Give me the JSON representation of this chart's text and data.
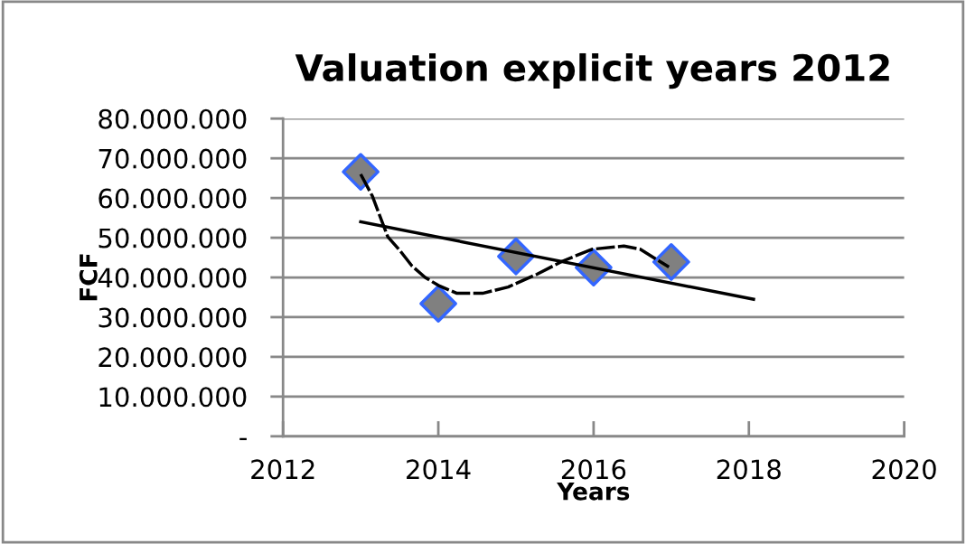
{
  "chart_data": {
    "type": "scatter",
    "title": "Valuation explicit years 2012",
    "xlabel": "Years",
    "ylabel": "FCF",
    "xlim": [
      2012,
      2020
    ],
    "xticks": [
      2012,
      2014,
      2016,
      2018,
      2020
    ],
    "ylim": [
      0,
      80000000
    ],
    "yticks": [
      {
        "value": 0,
        "label": "-"
      },
      {
        "value": 10000000,
        "label": "10.000.000"
      },
      {
        "value": 20000000,
        "label": "20.000.000"
      },
      {
        "value": 30000000,
        "label": "30.000.000"
      },
      {
        "value": 40000000,
        "label": "40.000.000"
      },
      {
        "value": 50000000,
        "label": "50.000.000"
      },
      {
        "value": 60000000,
        "label": "60.000.000"
      },
      {
        "value": 70000000,
        "label": "70.000.000"
      },
      {
        "value": 80000000,
        "label": "80.000.000"
      }
    ],
    "grid": "y",
    "legend": false,
    "series": [
      {
        "color": "#808080",
        "marker": "diamond",
        "x": [
          2013,
          2014,
          2015,
          2016,
          2017
        ],
        "values": [
          66600000,
          33400000,
          45300000,
          42500000,
          43900000
        ]
      },
      {
        "type": "line",
        "color": "#000000",
        "marker": "none",
        "line_style": "solid",
        "x": [
          2013,
          2018.06
        ],
        "values": [
          54000000,
          34500000
        ]
      },
      {
        "type": "line",
        "color": "#000000",
        "marker": "none",
        "line_style": "dashed",
        "x": [
          2013,
          2013.15,
          2013.35,
          2013.5,
          2013.66,
          2013.83,
          2014,
          2014.24,
          2014.57,
          2014.9,
          2015.27,
          2015.6,
          2015.98,
          2016.39,
          2016.6,
          2016.97
        ],
        "values": [
          66000000,
          60500000,
          50200000,
          46900000,
          42900000,
          40000000,
          38000000,
          36000000,
          36000000,
          37600000,
          40800000,
          44100000,
          47100000,
          47900000,
          47100000,
          42600000
        ]
      }
    ]
  }
}
